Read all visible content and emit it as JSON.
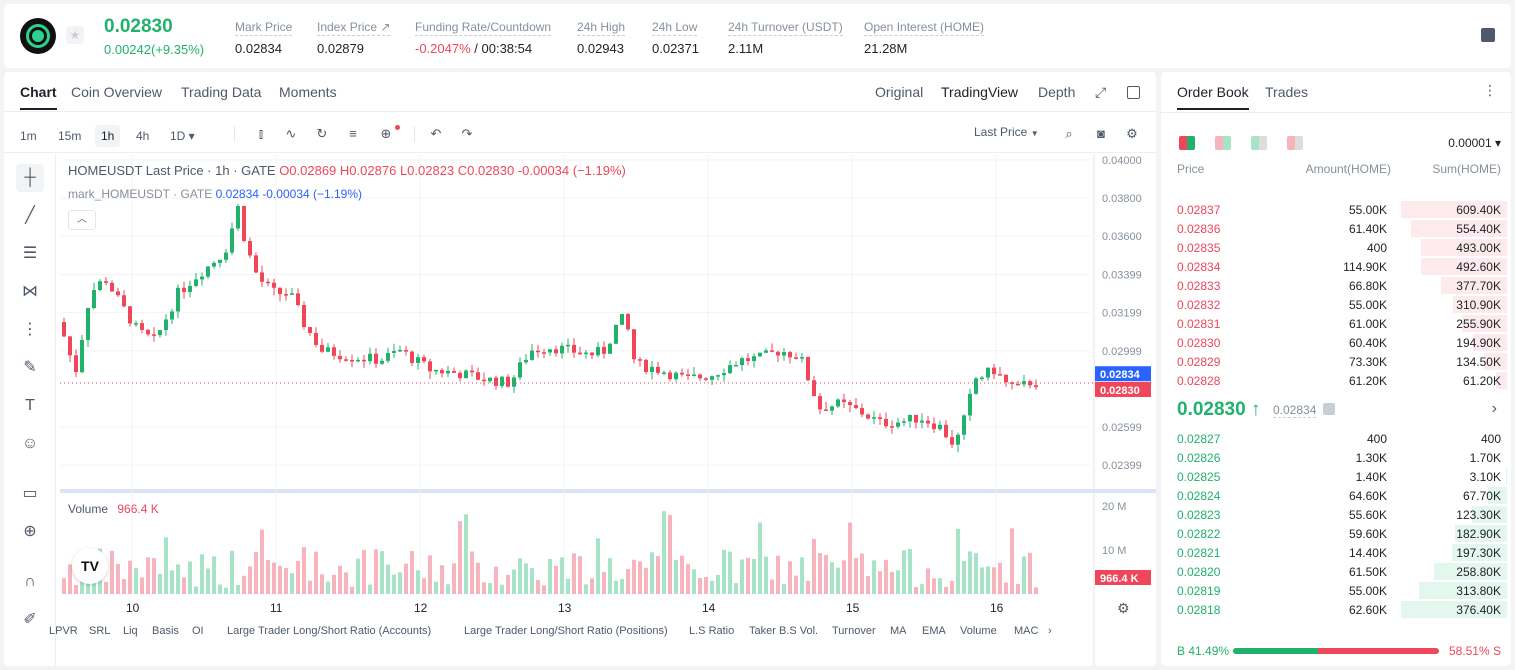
{
  "header": {
    "last_price": "0.02830",
    "change": "0.00242(+9.35%)",
    "stats": [
      {
        "label": "Mark Price",
        "value": "0.02834"
      },
      {
        "label": "Index Price ↗",
        "value": "0.02879"
      },
      {
        "label": "Funding Rate/Countdown",
        "value_red": "-0.2047%",
        "value": "/ 00:38:54"
      },
      {
        "label": "24h High",
        "value": "0.02943"
      },
      {
        "label": "24h Low",
        "value": "0.02371"
      },
      {
        "label": "24h Turnover (USDT)",
        "value": "2.11M"
      },
      {
        "label": "Open Interest (HOME)",
        "value": "21.28M"
      }
    ]
  },
  "chart_tabs": [
    "Chart",
    "Coin Overview",
    "Trading Data",
    "Moments"
  ],
  "view_tabs": [
    "Original",
    "TradingView",
    "Depth"
  ],
  "timeframes": [
    "1m",
    "15m",
    "1h",
    "4h",
    "1D ▾"
  ],
  "price_source": "Last Price",
  "legend": {
    "line1_prefix": "HOMEUSDT Last Price · 1h · GATE",
    "o": "O0.02869",
    "h": "H0.02876",
    "l": "L0.02823",
    "c": "C0.02830",
    "chg": "-0.00034 (−1.19%)",
    "line2_prefix": "mark_HOMEUSDT · GATE",
    "line2_val": "0.02834 -0.00034 (−1.19%)",
    "volume_label": "Volume",
    "volume_value": "966.4 K"
  },
  "price_axis": [
    "0.04000",
    "0.03800",
    "0.03600",
    "0.03399",
    "0.03199",
    "0.02999",
    "0.02599",
    "0.02399"
  ],
  "price_tags": {
    "mark": "0.02834",
    "last": "0.02830"
  },
  "volume_axis": [
    "20 M",
    "10 M"
  ],
  "volume_tag": "966.4 K",
  "date_axis": [
    "10",
    "11",
    "12",
    "13",
    "14",
    "15",
    "16"
  ],
  "indicators": [
    "LPVR",
    "SRL",
    "Liq",
    "Basis",
    "OI",
    "Large Trader Long/Short Ratio (Accounts)",
    "Large Trader Long/Short Ratio (Positions)",
    "L.S Ratio",
    "Taker B.S Vol.",
    "Turnover",
    "MA",
    "EMA",
    "Volume",
    "MACD"
  ],
  "orderbook": {
    "tabs": [
      "Order Book",
      "Trades"
    ],
    "precision": "0.00001 ▾",
    "headers": [
      "Price",
      "Amount(HOME)",
      "Sum(HOME)"
    ],
    "asks": [
      {
        "price": "0.02837",
        "amount": "55.00K",
        "sum": "609.40K",
        "depth": 1.0
      },
      {
        "price": "0.02836",
        "amount": "61.40K",
        "sum": "554.40K",
        "depth": 0.91
      },
      {
        "price": "0.02835",
        "amount": "400",
        "sum": "493.00K",
        "depth": 0.81
      },
      {
        "price": "0.02834",
        "amount": "114.90K",
        "sum": "492.60K",
        "depth": 0.81
      },
      {
        "price": "0.02833",
        "amount": "66.80K",
        "sum": "377.70K",
        "depth": 0.62
      },
      {
        "price": "0.02832",
        "amount": "55.00K",
        "sum": "310.90K",
        "depth": 0.51
      },
      {
        "price": "0.02831",
        "amount": "61.00K",
        "sum": "255.90K",
        "depth": 0.42
      },
      {
        "price": "0.02830",
        "amount": "60.40K",
        "sum": "194.90K",
        "depth": 0.32
      },
      {
        "price": "0.02829",
        "amount": "73.30K",
        "sum": "134.50K",
        "depth": 0.22
      },
      {
        "price": "0.02828",
        "amount": "61.20K",
        "sum": "61.20K",
        "depth": 0.1
      }
    ],
    "mid_price": "0.02830 ↑",
    "mid_mark": "0.02834",
    "bids": [
      {
        "price": "0.02827",
        "amount": "400",
        "sum": "400",
        "depth": 0.0
      },
      {
        "price": "0.02826",
        "amount": "1.30K",
        "sum": "1.70K",
        "depth": 0.0
      },
      {
        "price": "0.02825",
        "amount": "1.40K",
        "sum": "3.10K",
        "depth": 0.01
      },
      {
        "price": "0.02824",
        "amount": "64.60K",
        "sum": "67.70K",
        "depth": 0.18
      },
      {
        "price": "0.02823",
        "amount": "55.60K",
        "sum": "123.30K",
        "depth": 0.33
      },
      {
        "price": "0.02822",
        "amount": "59.60K",
        "sum": "182.90K",
        "depth": 0.49
      },
      {
        "price": "0.02821",
        "amount": "14.40K",
        "sum": "197.30K",
        "depth": 0.52
      },
      {
        "price": "0.02820",
        "amount": "61.50K",
        "sum": "258.80K",
        "depth": 0.69
      },
      {
        "price": "0.02819",
        "amount": "55.00K",
        "sum": "313.80K",
        "depth": 0.83
      },
      {
        "price": "0.02818",
        "amount": "62.60K",
        "sum": "376.40K",
        "depth": 1.0
      }
    ],
    "buy_ratio": "B 41.49%",
    "sell_ratio": "58.51% S",
    "buy_fraction": 0.4149
  },
  "colors": {
    "up": "#20b26c",
    "down": "#f0465a"
  }
}
